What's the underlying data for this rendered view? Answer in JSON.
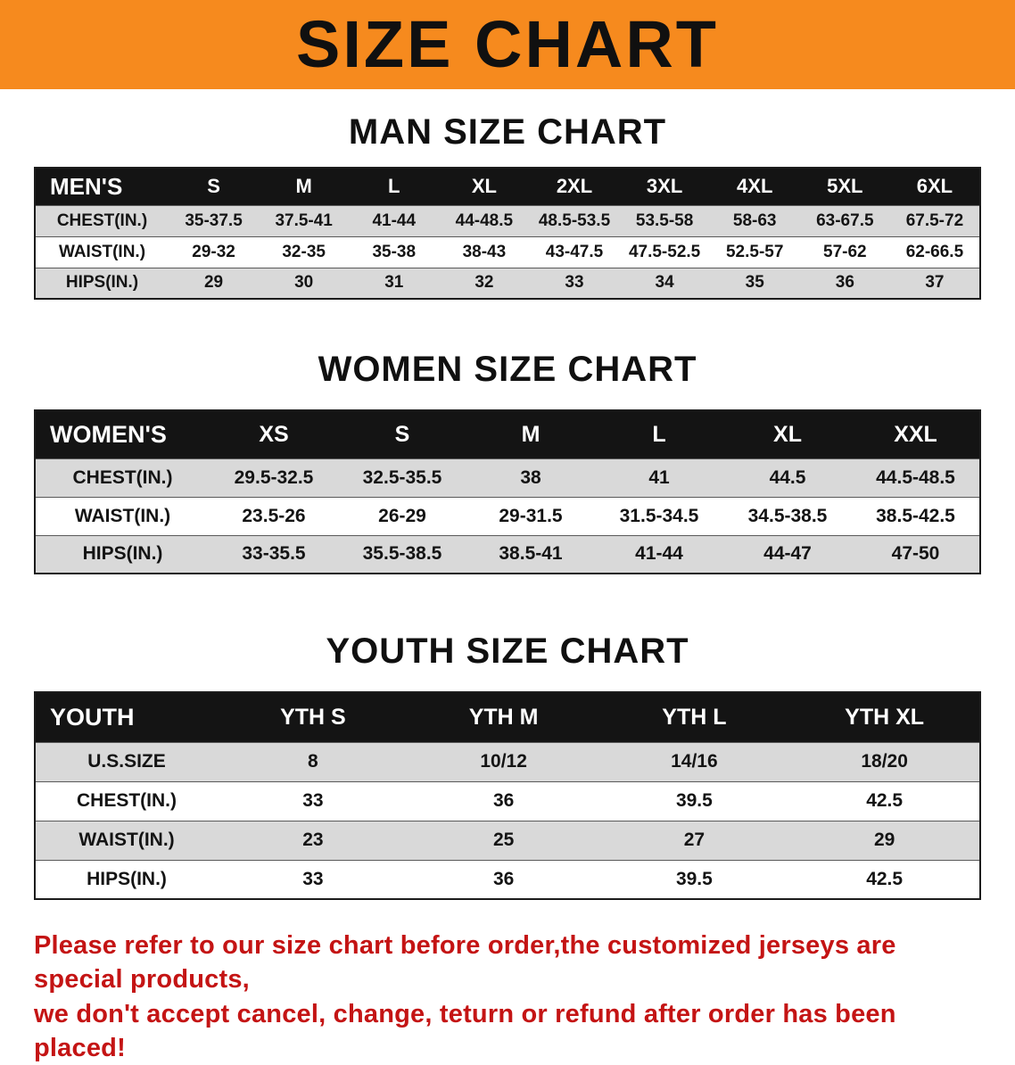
{
  "banner": {
    "title": "SIZE CHART"
  },
  "colors": {
    "banner": "#f68a1e",
    "table_header": "#141414",
    "stripe": "#d9d9d9",
    "accent_red": "#c41414"
  },
  "sections": [
    {
      "heading": "MAN SIZE CHART",
      "header": [
        "MEN'S",
        "S",
        "M",
        "L",
        "XL",
        "2XL",
        "3XL",
        "4XL",
        "5XL",
        "6XL"
      ],
      "rows": [
        [
          "CHEST(IN.)",
          "35-37.5",
          "37.5-41",
          "41-44",
          "44-48.5",
          "48.5-53.5",
          "53.5-58",
          "58-63",
          "63-67.5",
          "67.5-72"
        ],
        [
          "WAIST(IN.)",
          "29-32",
          "32-35",
          "35-38",
          "38-43",
          "43-47.5",
          "47.5-52.5",
          "52.5-57",
          "57-62",
          "62-66.5"
        ],
        [
          "HIPS(IN.)",
          "29",
          "30",
          "31",
          "32",
          "33",
          "34",
          "35",
          "36",
          "37"
        ]
      ]
    },
    {
      "heading": "WOMEN SIZE CHART",
      "header": [
        "WOMEN'S",
        "XS",
        "S",
        "M",
        "L",
        "XL",
        "XXL"
      ],
      "rows": [
        [
          "CHEST(IN.)",
          "29.5-32.5",
          "32.5-35.5",
          "38",
          "41",
          "44.5",
          "44.5-48.5"
        ],
        [
          "WAIST(IN.)",
          "23.5-26",
          "26-29",
          "29-31.5",
          "31.5-34.5",
          "34.5-38.5",
          "38.5-42.5"
        ],
        [
          "HIPS(IN.)",
          "33-35.5",
          "35.5-38.5",
          "38.5-41",
          "41-44",
          "44-47",
          "47-50"
        ]
      ]
    },
    {
      "heading": "YOUTH SIZE CHART",
      "header": [
        "YOUTH",
        "YTH S",
        "YTH M",
        "YTH L",
        "YTH XL"
      ],
      "rows": [
        [
          "U.S.SIZE",
          "8",
          "10/12",
          "14/16",
          "18/20"
        ],
        [
          "CHEST(IN.)",
          "33",
          "36",
          "39.5",
          "42.5"
        ],
        [
          "WAIST(IN.)",
          "23",
          "25",
          "27",
          "29"
        ],
        [
          "HIPS(IN.)",
          "33",
          "36",
          "39.5",
          "42.5"
        ]
      ]
    }
  ],
  "disclaimer": {
    "lines": [
      "Please refer to our size chart before order,the customized jerseys are special products,",
      "we don't accept cancel, change, teturn or refund after order has been placed!"
    ]
  }
}
